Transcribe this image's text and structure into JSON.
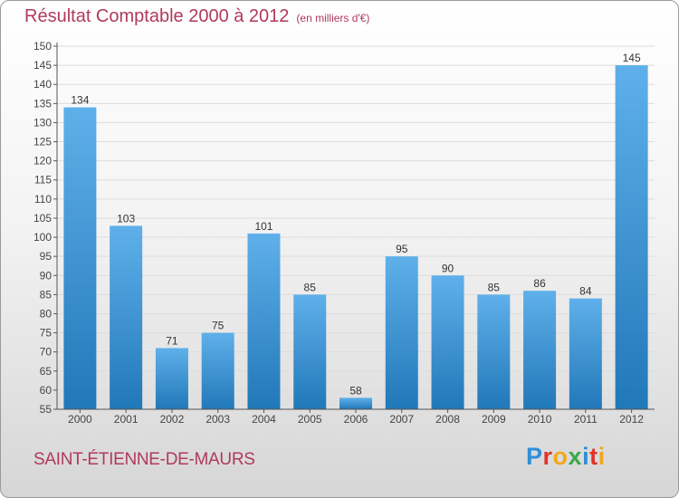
{
  "header": {
    "title": "Résultat Comptable 2000 à 2012",
    "subtitle": "(en milliers d'€)"
  },
  "footer": {
    "commune": "SAINT-ÉTIENNE-DE-MAURS",
    "logo_letters": [
      "P",
      "r",
      "o",
      "x",
      "i",
      "t",
      "i"
    ],
    "logo_colors": [
      "#2f8fd8",
      "#e0342a",
      "#f2a71b",
      "#3aa84a",
      "#2f8fd8",
      "#e0342a",
      "#f2a71b"
    ]
  },
  "colors": {
    "bar_light": "#5fb0ea",
    "bar_dark": "#2178b8",
    "axis": "#555555",
    "grid": "#dddddd",
    "accent": "#b03a5b"
  },
  "chart_data": {
    "type": "bar",
    "title": "Résultat Comptable 2000 à 2012",
    "subtitle": "(en milliers d'€)",
    "xlabel": "",
    "ylabel": "",
    "categories": [
      "2000",
      "2001",
      "2002",
      "2003",
      "2004",
      "2005",
      "2006",
      "2007",
      "2008",
      "2009",
      "2010",
      "2011",
      "2012"
    ],
    "values": [
      134,
      103,
      71,
      75,
      101,
      85,
      58,
      95,
      90,
      85,
      86,
      84,
      145
    ],
    "ylim": [
      55,
      150
    ],
    "yticks": [
      55,
      60,
      65,
      70,
      75,
      80,
      85,
      90,
      95,
      100,
      105,
      110,
      115,
      120,
      125,
      130,
      135,
      140,
      145,
      150
    ],
    "grid": true,
    "legend": "none"
  }
}
